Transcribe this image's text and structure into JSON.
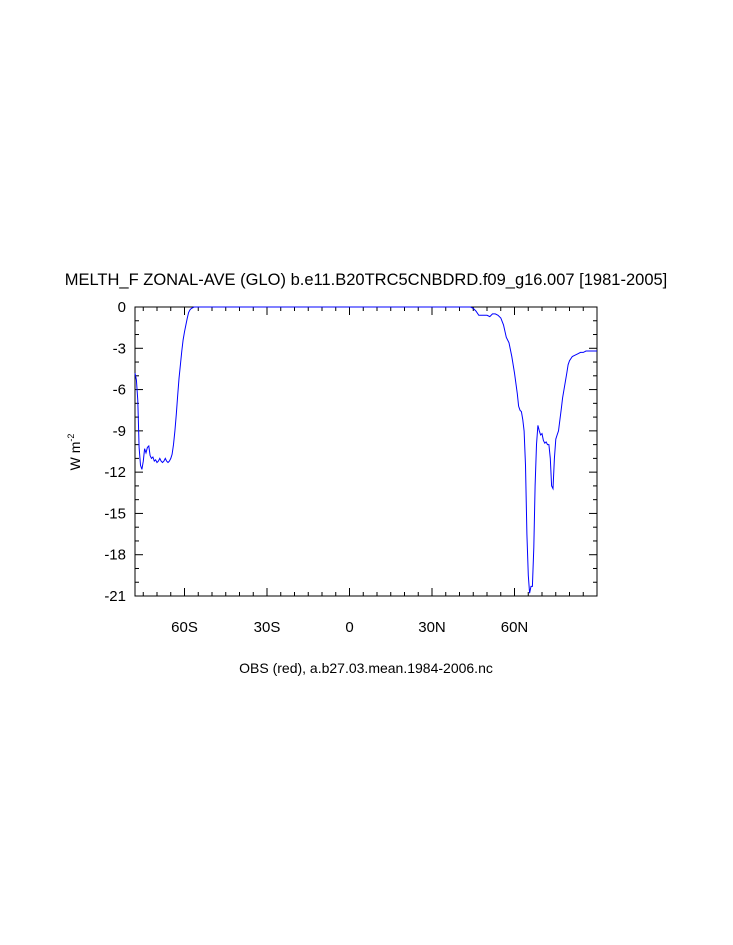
{
  "chart_data": {
    "type": "line",
    "title": "MELTH_F ZONAL-AVE (GLO) b.e11.B20TRC5CNBDRD.f09_g16.007 [1981-2005]",
    "ylabel_main": "W m",
    "ylabel_sup": "-2",
    "xlabel": "OBS (red), a.b27.03.mean.1984-2006.nc",
    "xlim": [
      -78,
      90
    ],
    "ylim": [
      -21,
      0
    ],
    "x_ticks": [
      {
        "value": -60,
        "label": "60S"
      },
      {
        "value": -30,
        "label": "30S"
      },
      {
        "value": 0,
        "label": "0"
      },
      {
        "value": 30,
        "label": "30N"
      },
      {
        "value": 60,
        "label": "60N"
      }
    ],
    "y_ticks": [
      {
        "value": 0,
        "label": "0"
      },
      {
        "value": -3,
        "label": "-3"
      },
      {
        "value": -6,
        "label": "-6"
      },
      {
        "value": -9,
        "label": "-9"
      },
      {
        "value": -12,
        "label": "-12"
      },
      {
        "value": -15,
        "label": "-15"
      },
      {
        "value": -18,
        "label": "-18"
      },
      {
        "value": -21,
        "label": "-21"
      }
    ],
    "series": [
      {
        "color": "#0000ff",
        "x": [
          -78,
          -77.5,
          -77,
          -76.5,
          -76,
          -75.5,
          -75,
          -74.5,
          -74,
          -73.5,
          -73,
          -72.5,
          -72,
          -71.5,
          -71,
          -70.5,
          -70,
          -69.5,
          -69,
          -68.5,
          -68,
          -67.5,
          -67,
          -66.5,
          -66,
          -65.5,
          -65,
          -64.5,
          -64,
          -63.5,
          -63,
          -62.5,
          -62,
          -61.5,
          -61,
          -60.5,
          -60,
          -59.5,
          -59,
          -58.5,
          -58,
          -57.5,
          -57,
          -56.5,
          -56,
          -55.5,
          -55,
          -54.5,
          -54,
          43,
          44,
          45,
          46,
          47,
          48,
          49,
          50,
          51,
          52,
          53,
          54,
          55,
          56,
          57,
          58,
          59,
          60,
          61,
          61.5,
          62,
          62.5,
          63,
          63.5,
          64,
          64.5,
          65,
          65.5,
          66,
          66.5,
          67,
          67.5,
          68,
          68.5,
          69,
          69.5,
          70,
          70.5,
          71,
          71.5,
          72,
          72.5,
          73,
          73.5,
          74,
          74.5,
          75,
          75.5,
          76,
          76.5,
          77,
          77.5,
          78,
          78.5,
          79,
          79.5,
          80,
          81,
          82,
          83,
          84,
          85,
          86,
          87,
          88,
          89,
          90
        ],
        "y": [
          -4.8,
          -5.3,
          -6.8,
          -10.2,
          -11.5,
          -11.8,
          -11.2,
          -10.3,
          -10.6,
          -10.2,
          -10.1,
          -10.8,
          -11.0,
          -10.9,
          -11.2,
          -11.1,
          -11.3,
          -11.2,
          -11.0,
          -11.2,
          -11.3,
          -11.2,
          -11.0,
          -11.2,
          -11.3,
          -11.2,
          -11.0,
          -10.7,
          -10.0,
          -9.0,
          -7.8,
          -6.5,
          -5.2,
          -4.2,
          -3.2,
          -2.4,
          -1.8,
          -1.3,
          -0.8,
          -0.4,
          -0.2,
          -0.1,
          -0.05,
          0,
          0,
          0,
          0,
          0,
          0,
          0,
          0,
          -0.1,
          -0.3,
          -0.6,
          -0.6,
          -0.6,
          -0.6,
          -0.7,
          -0.5,
          -0.5,
          -0.6,
          -0.8,
          -1.3,
          -2.2,
          -2.6,
          -3.6,
          -4.8,
          -6.3,
          -7.2,
          -7.5,
          -7.6,
          -8.2,
          -9.0,
          -11.5,
          -16.5,
          -19.5,
          -20.8,
          -20.3,
          -20.3,
          -17.5,
          -13.0,
          -10.0,
          -8.6,
          -9.0,
          -9.3,
          -9.2,
          -9.7,
          -9.9,
          -9.8,
          -10.0,
          -10.0,
          -11.0,
          -13.0,
          -13.2,
          -11.0,
          -9.6,
          -9.3,
          -9.0,
          -8.2,
          -7.4,
          -6.6,
          -6.0,
          -5.4,
          -4.8,
          -4.2,
          -3.9,
          -3.6,
          -3.5,
          -3.4,
          -3.3,
          -3.3,
          -3.2,
          -3.2,
          -3.2,
          -3.2,
          -3.2
        ]
      }
    ]
  }
}
